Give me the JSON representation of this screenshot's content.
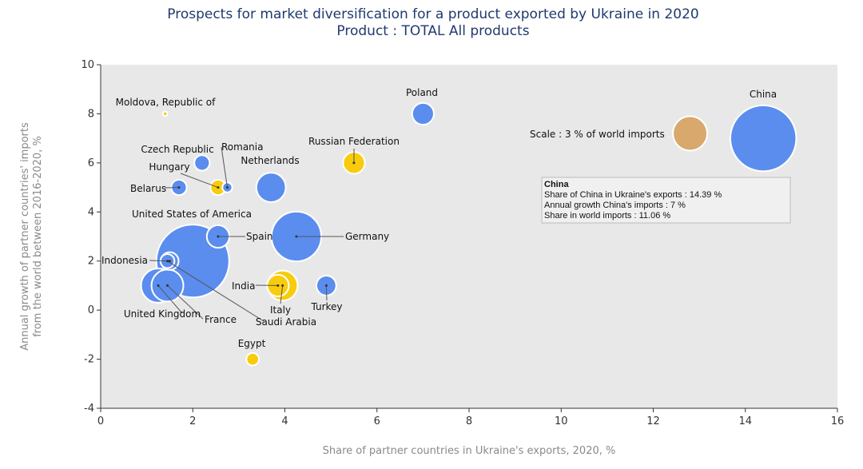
{
  "chart_data": {
    "type": "scatter",
    "title": "Prospects for market diversification for a product exported by Ukraine in 2020",
    "subtitle": "Product : TOTAL All products",
    "xlabel": "Share of partner countries in Ukraine's exports, 2020, %",
    "ylabel_line1": "Annual growth of partner countries' imports",
    "ylabel_line2": "from the world between 2016-2020, %",
    "xlim": [
      0,
      16
    ],
    "ylim": [
      -4,
      10
    ],
    "x_ticks": [
      "0",
      "2",
      "4",
      "6",
      "8",
      "10",
      "12",
      "14",
      "16"
    ],
    "y_ticks": [
      "-4",
      "-2",
      "0",
      "2",
      "4",
      "6",
      "8",
      "10"
    ],
    "grid": false,
    "colors": {
      "blue": "#5b8def",
      "yellow": "#f8cc0c",
      "scale": "#d9a86c",
      "plot_bg": "#e8e8e8"
    },
    "points": [
      {
        "name": "China",
        "x": 14.39,
        "y": 7,
        "share": 11.06,
        "color": "blue"
      },
      {
        "name": "United States of America",
        "x": 2.0,
        "y": 2.0,
        "share": 13.5,
        "color": "blue"
      },
      {
        "name": "Germany",
        "x": 4.25,
        "y": 3.0,
        "share": 6.3,
        "color": "blue"
      },
      {
        "name": "Netherlands",
        "x": 3.7,
        "y": 5.0,
        "share": 2.2,
        "color": "blue"
      },
      {
        "name": "United Kingdom",
        "x": 1.25,
        "y": 1.0,
        "share": 3.0,
        "color": "blue"
      },
      {
        "name": "France",
        "x": 1.45,
        "y": 1.0,
        "share": 2.6,
        "color": "blue"
      },
      {
        "name": "Spain",
        "x": 2.55,
        "y": 3.0,
        "share": 1.3,
        "color": "blue"
      },
      {
        "name": "Italy",
        "x": 3.95,
        "y": 1.0,
        "share": 2.3,
        "color": "yellow"
      },
      {
        "name": "India",
        "x": 3.85,
        "y": 1.0,
        "share": 1.2,
        "color": "yellow"
      },
      {
        "name": "Poland",
        "x": 7.0,
        "y": 8.0,
        "share": 1.2,
        "color": "blue"
      },
      {
        "name": "Russian Federation",
        "x": 5.5,
        "y": 6.0,
        "share": 1.2,
        "color": "yellow"
      },
      {
        "name": "Turkey",
        "x": 4.9,
        "y": 1.0,
        "share": 1.0,
        "color": "blue"
      },
      {
        "name": "Belarus",
        "x": 1.7,
        "y": 5.0,
        "share": 0.6,
        "color": "blue"
      },
      {
        "name": "Hungary",
        "x": 2.55,
        "y": 5.0,
        "share": 0.6,
        "color": "yellow"
      },
      {
        "name": "Czech Republic",
        "x": 2.2,
        "y": 6.0,
        "share": 0.6,
        "color": "blue"
      },
      {
        "name": "Romania",
        "x": 2.75,
        "y": 5.0,
        "share": 0.25,
        "color": "blue"
      },
      {
        "name": "Indonesia",
        "x": 1.5,
        "y": 2.0,
        "share": 0.8,
        "color": "blue"
      },
      {
        "name": "Saudi Arabia",
        "x": 1.45,
        "y": 2.0,
        "share": 0.5,
        "color": "blue"
      },
      {
        "name": "Egypt",
        "x": 3.3,
        "y": -2.0,
        "share": 0.4,
        "color": "yellow"
      },
      {
        "name": "Moldova, Republic of",
        "x": 1.4,
        "y": 8.0,
        "share": 0.05,
        "color": "yellow"
      }
    ],
    "scale_label": "Scale : 3 % of world imports",
    "scale_share": 3,
    "scale_x": 12.8,
    "scale_y": 7.2,
    "tooltip": {
      "title": "China",
      "line1": "Share of China in Ukraine's exports : 14.39 %",
      "line2": "Annual growth China's imports : 7 %",
      "line3": "Share in world imports : 11.06 %"
    }
  }
}
